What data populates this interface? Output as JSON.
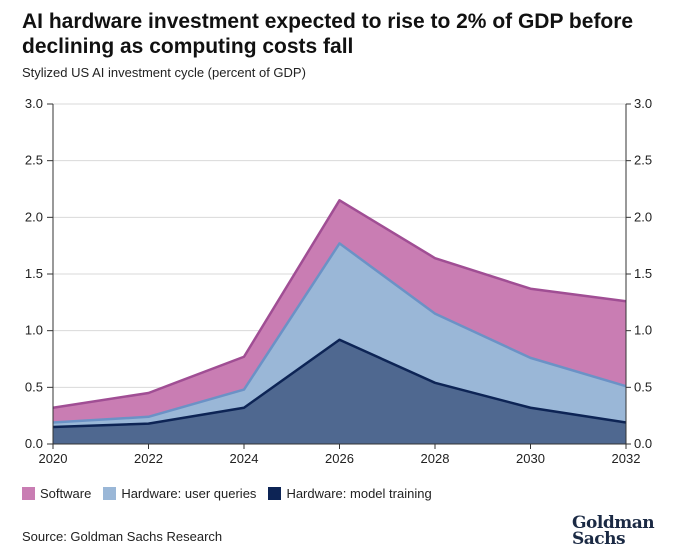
{
  "title": "AI hardware investment expected to rise to 2% of GDP before declining as computing costs fall",
  "subtitle": "Stylized US AI investment cycle (percent of GDP)",
  "source": "Source: Goldman Sachs Research",
  "logo": {
    "line1": "Goldman",
    "line2": "Sachs"
  },
  "chart_data": {
    "type": "area",
    "stacked": true,
    "x": [
      2020,
      2022,
      2024,
      2026,
      2028,
      2030,
      2032
    ],
    "series": [
      {
        "name": "Hardware: model training",
        "values": [
          0.15,
          0.18,
          0.32,
          0.92,
          0.54,
          0.32,
          0.19
        ],
        "fill": "#4f6890",
        "stroke": "#0d2455"
      },
      {
        "name": "Hardware: user queries",
        "values": [
          0.04,
          0.06,
          0.16,
          0.85,
          0.61,
          0.44,
          0.32
        ],
        "fill": "#9ab7d7",
        "stroke": "#6b92c6"
      },
      {
        "name": "Software",
        "values": [
          0.13,
          0.21,
          0.29,
          0.38,
          0.49,
          0.61,
          0.75
        ],
        "fill": "#c97db3",
        "stroke": "#a04e94"
      }
    ],
    "xticks": [
      "2020",
      "2022",
      "2024",
      "2026",
      "2028",
      "2030",
      "2032"
    ],
    "yticks": [
      "0.0",
      "0.5",
      "1.0",
      "1.5",
      "2.0",
      "2.5",
      "3.0"
    ],
    "xlim": [
      2020,
      2032
    ],
    "ylim": [
      0,
      3.0
    ],
    "grid": true,
    "legend_position": "bottom-left"
  }
}
